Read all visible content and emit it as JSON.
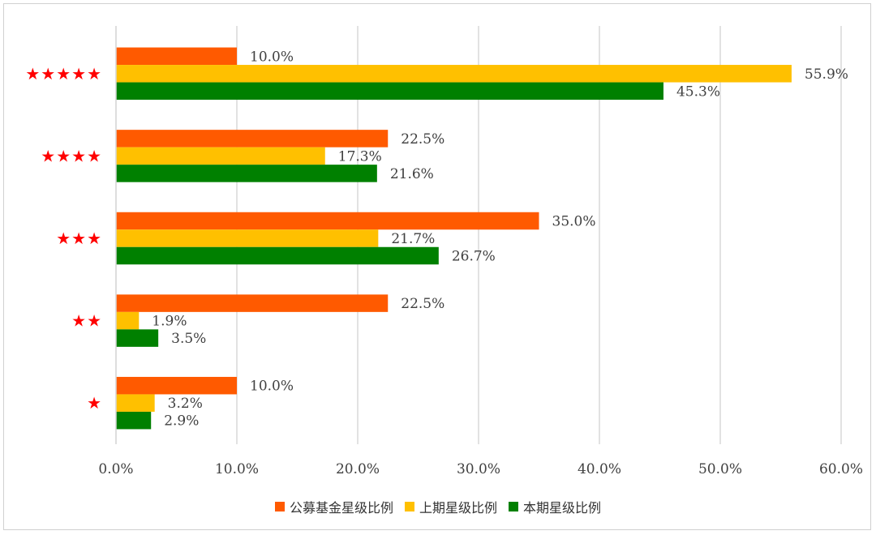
{
  "chart_data": {
    "type": "bar",
    "orientation": "horizontal",
    "categories": [
      "★★★★★",
      "★★★★",
      "★★★",
      "★★",
      "★"
    ],
    "series": [
      {
        "name": "公募基金星级比例",
        "color": "#ff5a00",
        "values": [
          10.0,
          22.5,
          35.0,
          22.5,
          10.0
        ]
      },
      {
        "name": "上期星级比例",
        "color": "#ffc000",
        "values": [
          55.9,
          17.3,
          21.7,
          1.9,
          3.2
        ]
      },
      {
        "name": "本期星级比例",
        "color": "#008000",
        "values": [
          45.3,
          21.6,
          26.7,
          3.5,
          2.9
        ]
      }
    ],
    "value_labels": [
      [
        "10.0%",
        "55.9%",
        "45.3%"
      ],
      [
        "22.5%",
        "17.3%",
        "21.6%"
      ],
      [
        "35.0%",
        "21.7%",
        "26.7%"
      ],
      [
        "22.5%",
        "1.9%",
        "3.5%"
      ],
      [
        "10.0%",
        "3.2%",
        "2.9%"
      ]
    ],
    "xlim": [
      0,
      60
    ],
    "x_ticks": [
      "0.0%",
      "10.0%",
      "20.0%",
      "30.0%",
      "40.0%",
      "50.0%",
      "60.0%"
    ],
    "star_color": "#ff0000",
    "grid": true,
    "legend_position": "bottom"
  }
}
